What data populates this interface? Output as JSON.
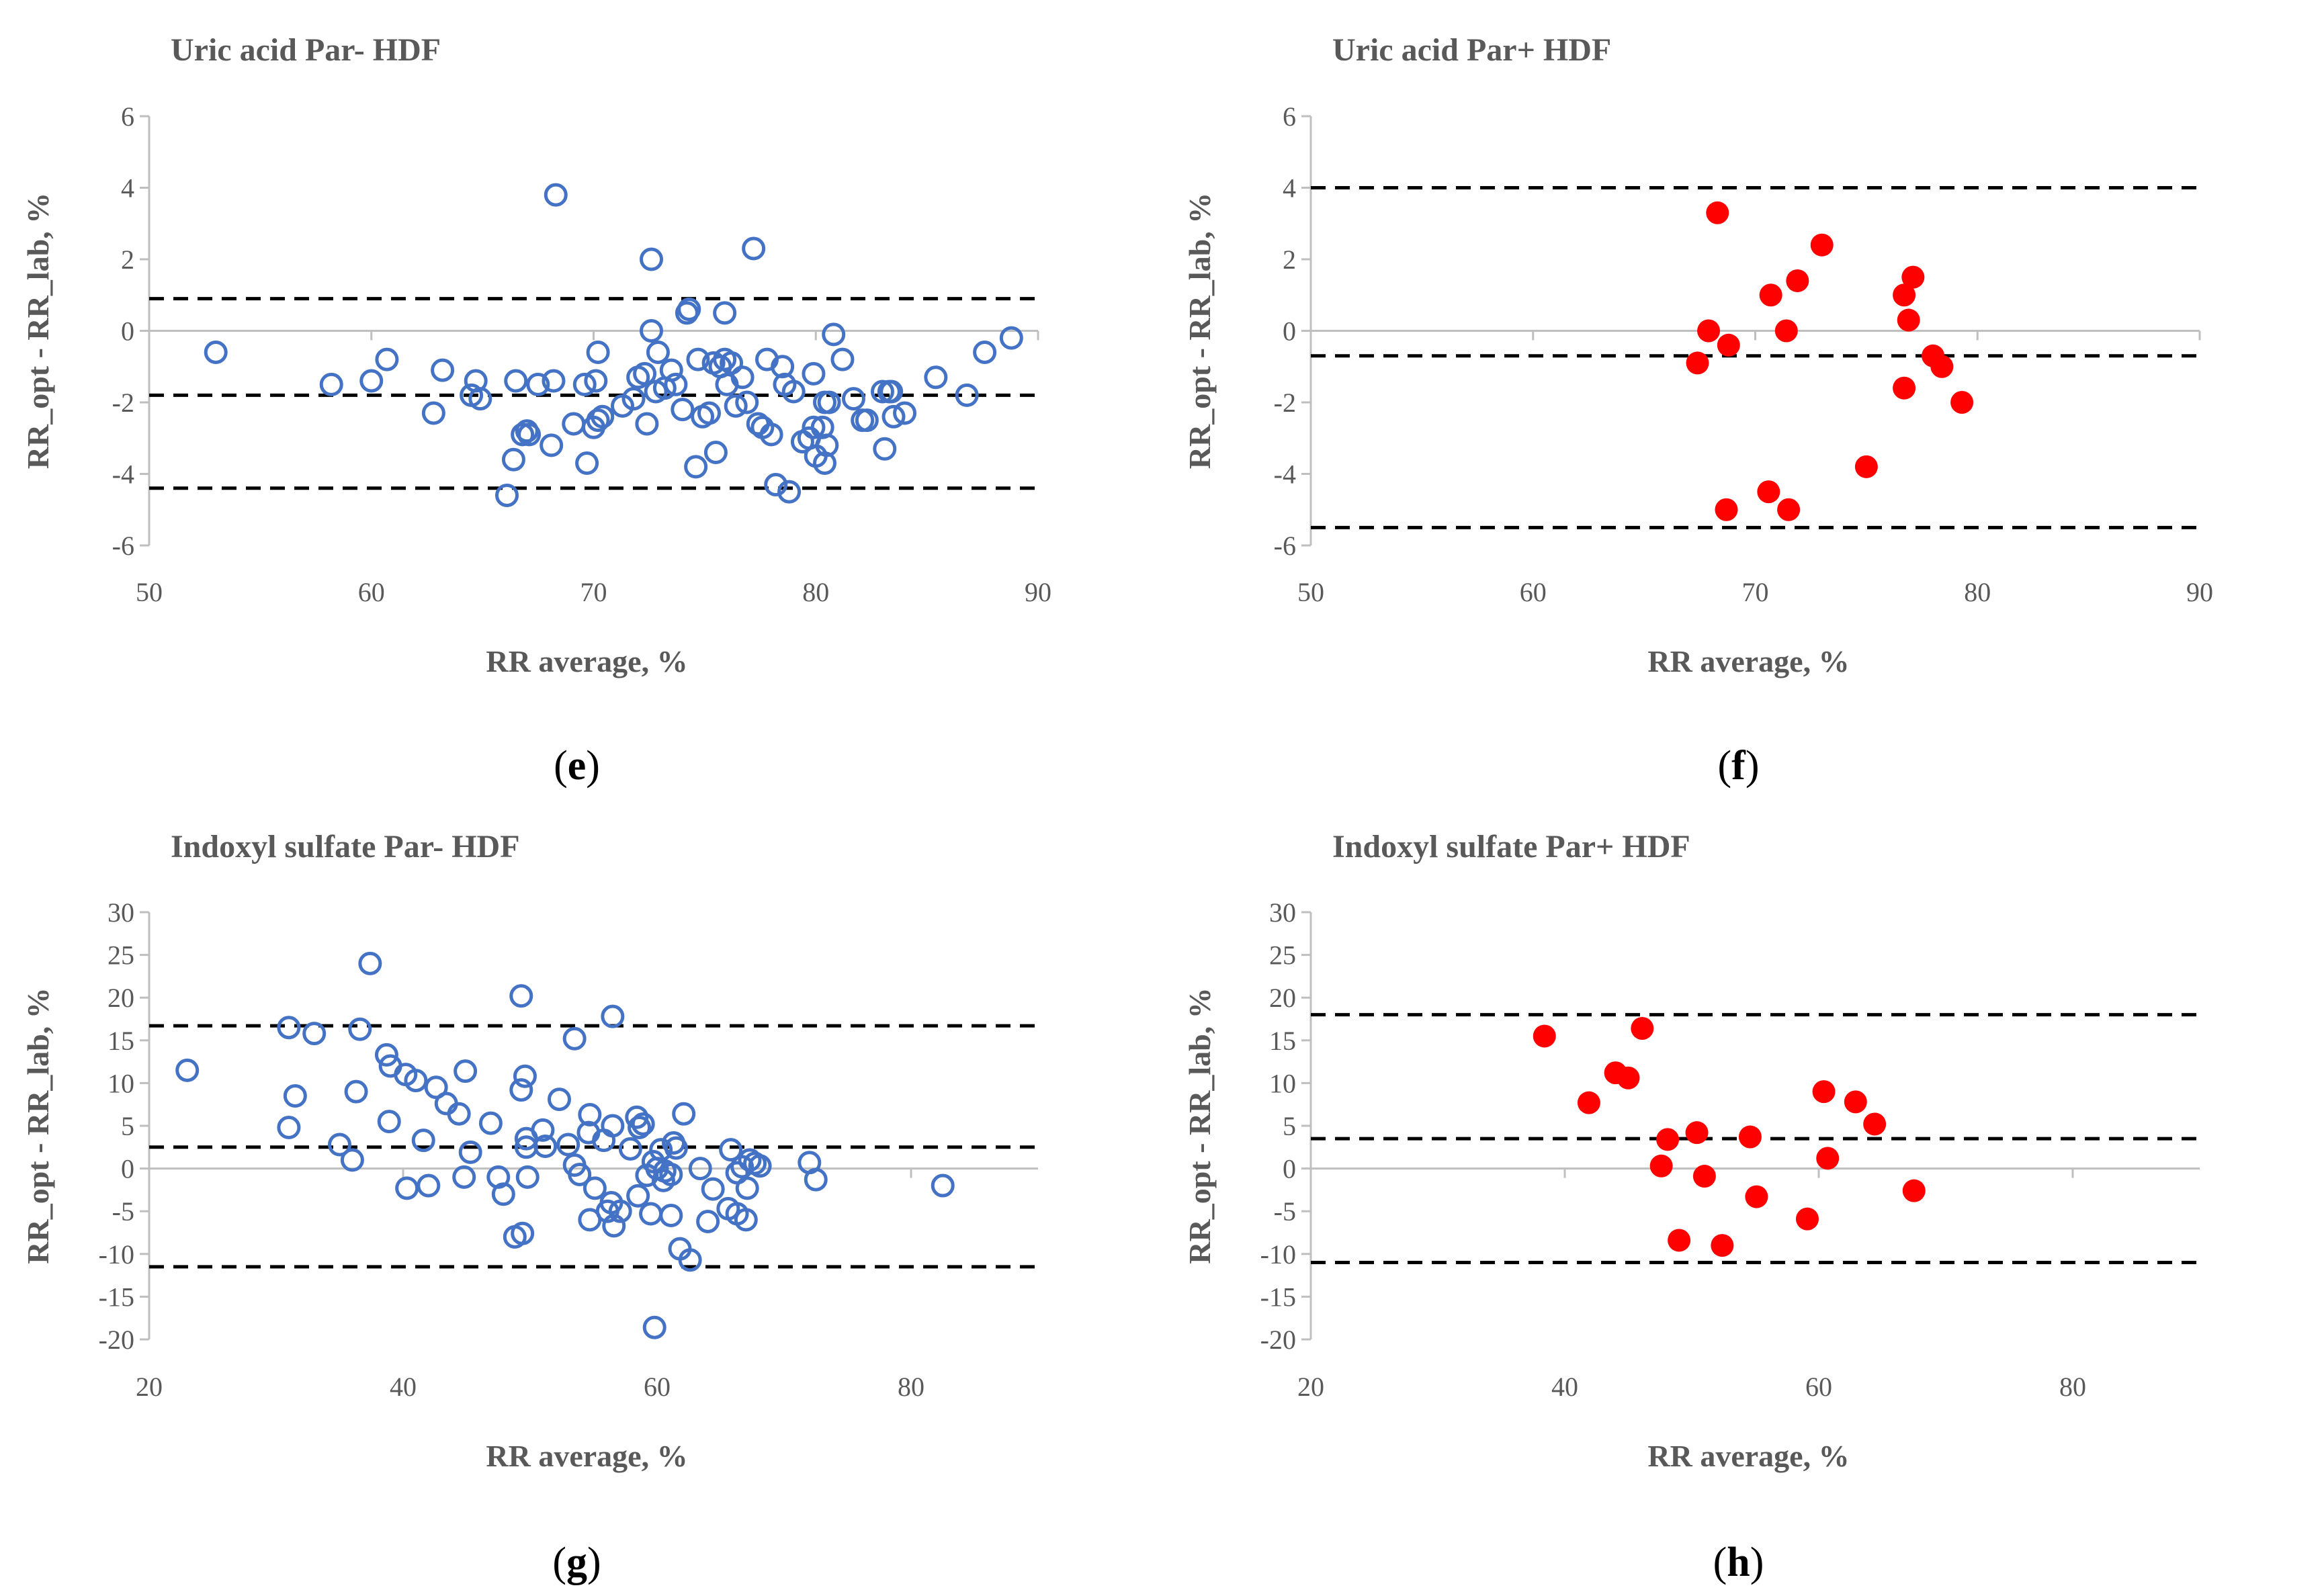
{
  "colors": {
    "blue": "#4472C4",
    "red": "#FF0000",
    "axis": "#BFBFBF",
    "text": "#595959",
    "limit": "#000000"
  },
  "chart_data": [
    {
      "type": "scatter",
      "panel_letter": "e",
      "title": "Uric acid Par- HDF",
      "xlabel": "RR average, %",
      "ylabel": "RR_opt - RR_lab, %",
      "xlim": [
        50,
        90
      ],
      "ylim": [
        -6,
        6
      ],
      "xticks": [
        50,
        60,
        70,
        80,
        90
      ],
      "yticks": [
        -6,
        -4,
        -2,
        0,
        2,
        4,
        6
      ],
      "marker": "open-circle",
      "color": "#4472C4",
      "limits": [
        0.9,
        -1.8,
        -4.4
      ],
      "points": [
        [
          53,
          -0.6
        ],
        [
          58.2,
          -1.5
        ],
        [
          60,
          -1.4
        ],
        [
          60.7,
          -0.8
        ],
        [
          62.8,
          -2.3
        ],
        [
          63.2,
          -1.1
        ],
        [
          64.5,
          -1.8
        ],
        [
          64.7,
          -1.4
        ],
        [
          64.9,
          -1.9
        ],
        [
          66.1,
          -4.6
        ],
        [
          66.4,
          -3.6
        ],
        [
          66.5,
          -1.4
        ],
        [
          66.8,
          -2.9
        ],
        [
          67,
          -2.8
        ],
        [
          67.1,
          -2.9
        ],
        [
          67.5,
          -1.5
        ],
        [
          68.2,
          -1.4
        ],
        [
          68.1,
          -3.2
        ],
        [
          68.3,
          3.8
        ],
        [
          69.1,
          -2.6
        ],
        [
          69.7,
          -3.7
        ],
        [
          69.6,
          -1.5
        ],
        [
          70,
          -2.7
        ],
        [
          70.2,
          -2.5
        ],
        [
          70.1,
          -1.4
        ],
        [
          70.2,
          -0.6
        ],
        [
          70.4,
          -2.4
        ],
        [
          71.3,
          -2.1
        ],
        [
          71.8,
          -1.9
        ],
        [
          72,
          -1.3
        ],
        [
          72.3,
          -1.2
        ],
        [
          72.4,
          -2.6
        ],
        [
          72.6,
          2
        ],
        [
          72.6,
          0
        ],
        [
          72.8,
          -1.7
        ],
        [
          72.9,
          -0.6
        ],
        [
          73.2,
          -1.6
        ],
        [
          73.5,
          -1.1
        ],
        [
          73.7,
          -1.5
        ],
        [
          74,
          -2.2
        ],
        [
          74.2,
          0.5
        ],
        [
          74.3,
          0.6
        ],
        [
          74.6,
          -3.8
        ],
        [
          74.7,
          -0.8
        ],
        [
          74.9,
          -2.4
        ],
        [
          75.2,
          -2.3
        ],
        [
          75.4,
          -0.9
        ],
        [
          75.5,
          -3.4
        ],
        [
          75.7,
          -1
        ],
        [
          75.9,
          -0.8
        ],
        [
          75.9,
          0.5
        ],
        [
          76,
          -1.5
        ],
        [
          76.2,
          -0.9
        ],
        [
          76.4,
          -2.1
        ],
        [
          76.7,
          -1.3
        ],
        [
          76.9,
          -2
        ],
        [
          77.2,
          2.3
        ],
        [
          77.4,
          -2.6
        ],
        [
          77.6,
          -2.7
        ],
        [
          77.8,
          -0.8
        ],
        [
          78,
          -2.9
        ],
        [
          78.2,
          -4.3
        ],
        [
          78.5,
          -1
        ],
        [
          78.6,
          -1.5
        ],
        [
          78.8,
          -4.5
        ],
        [
          79,
          -1.7
        ],
        [
          79.4,
          -3.1
        ],
        [
          79.7,
          -3
        ],
        [
          79.9,
          -1.2
        ],
        [
          79.9,
          -2.7
        ],
        [
          80,
          -3.5
        ],
        [
          80.3,
          -2.7
        ],
        [
          80.4,
          -3.7
        ],
        [
          80.4,
          -2
        ],
        [
          80.5,
          -3.2
        ],
        [
          80.6,
          -2
        ],
        [
          80.8,
          -0.1
        ],
        [
          81.2,
          -0.8
        ],
        [
          81.7,
          -1.9
        ],
        [
          82.1,
          -2.5
        ],
        [
          82.3,
          -2.5
        ],
        [
          83,
          -1.7
        ],
        [
          83.1,
          -3.3
        ],
        [
          83.3,
          -1.7
        ],
        [
          83.5,
          -2.4
        ],
        [
          83.4,
          -1.7
        ],
        [
          84,
          -2.3
        ],
        [
          85.4,
          -1.3
        ],
        [
          86.8,
          -1.8
        ],
        [
          87.6,
          -0.6
        ],
        [
          88.8,
          -0.2
        ]
      ]
    },
    {
      "type": "scatter",
      "panel_letter": "f",
      "title": "Uric acid Par+ HDF",
      "xlabel": "RR average, %",
      "ylabel": "RR_opt - RR_lab, %",
      "xlim": [
        50,
        90
      ],
      "ylim": [
        -6,
        6
      ],
      "xticks": [
        50,
        60,
        70,
        80,
        90
      ],
      "yticks": [
        -6,
        -4,
        -2,
        0,
        2,
        4,
        6
      ],
      "marker": "filled-circle",
      "color": "#FF0000",
      "limits": [
        4,
        -0.7,
        -5.5
      ],
      "points": [
        [
          67.4,
          -0.9
        ],
        [
          67.9,
          0
        ],
        [
          68.3,
          3.3
        ],
        [
          68.7,
          -5
        ],
        [
          68.8,
          -0.4
        ],
        [
          70.6,
          -4.5
        ],
        [
          70.7,
          1
        ],
        [
          71.4,
          0
        ],
        [
          71.5,
          -5
        ],
        [
          71.9,
          1.4
        ],
        [
          73,
          2.4
        ],
        [
          75,
          -3.8
        ],
        [
          76.7,
          -1.6
        ],
        [
          76.7,
          1
        ],
        [
          76.9,
          0.3
        ],
        [
          77.1,
          1.5
        ],
        [
          78,
          -0.7
        ],
        [
          78.4,
          -1
        ],
        [
          79.3,
          -2
        ]
      ]
    },
    {
      "type": "scatter",
      "panel_letter": "g",
      "title": "Indoxyl sulfate Par- HDF",
      "xlabel": "RR average, %",
      "ylabel": "RR_opt - RR_lab, %",
      "xlim": [
        20,
        90
      ],
      "ylim": [
        -20,
        30
      ],
      "xticks": [
        20,
        40,
        60,
        80
      ],
      "yticks": [
        -20,
        -15,
        -10,
        -5,
        0,
        5,
        10,
        15,
        20,
        25,
        30
      ],
      "marker": "open-circle",
      "color": "#4472C4",
      "limits": [
        16.7,
        2.5,
        -11.5
      ],
      "points": [
        [
          23,
          11.5
        ],
        [
          31,
          16.5
        ],
        [
          31,
          4.8
        ],
        [
          31.5,
          8.5
        ],
        [
          33,
          15.8
        ],
        [
          35,
          2.8
        ],
        [
          36,
          1
        ],
        [
          36.3,
          9
        ],
        [
          36.6,
          16.3
        ],
        [
          37.4,
          24
        ],
        [
          38.7,
          13.3
        ],
        [
          38.9,
          5.5
        ],
        [
          39,
          12
        ],
        [
          40.2,
          11
        ],
        [
          40.3,
          -2.3
        ],
        [
          41,
          10.3
        ],
        [
          41.6,
          3.3
        ],
        [
          42,
          -2
        ],
        [
          42.6,
          9.5
        ],
        [
          43.4,
          7.6
        ],
        [
          44.4,
          6.4
        ],
        [
          44.8,
          -1
        ],
        [
          44.9,
          11.4
        ],
        [
          45.3,
          1.9
        ],
        [
          46.9,
          5.3
        ],
        [
          47.5,
          -1
        ],
        [
          47.9,
          -3
        ],
        [
          48.8,
          -8
        ],
        [
          49.3,
          20.2
        ],
        [
          49.3,
          9.2
        ],
        [
          49.4,
          -7.6
        ],
        [
          49.6,
          10.8
        ],
        [
          49.7,
          3.5
        ],
        [
          49.7,
          2.5
        ],
        [
          49.8,
          -1
        ],
        [
          51,
          4.5
        ],
        [
          51.2,
          2.6
        ],
        [
          52.3,
          8.1
        ],
        [
          53,
          2.8
        ],
        [
          53.5,
          15.2
        ],
        [
          53.5,
          0.4
        ],
        [
          53.9,
          -0.7
        ],
        [
          54.6,
          4.2
        ],
        [
          54.7,
          -6
        ],
        [
          54.7,
          6.3
        ],
        [
          55.1,
          -2.3
        ],
        [
          55.8,
          3.3
        ],
        [
          56.1,
          -5
        ],
        [
          56.4,
          -4
        ],
        [
          56.5,
          5
        ],
        [
          56.5,
          17.8
        ],
        [
          56.6,
          -6.7
        ],
        [
          57.1,
          -5
        ],
        [
          57.9,
          2.3
        ],
        [
          58.4,
          6
        ],
        [
          58.5,
          -3.2
        ],
        [
          58.6,
          4.8
        ],
        [
          58.9,
          5.2
        ],
        [
          59.2,
          -0.8
        ],
        [
          59.5,
          -5.3
        ],
        [
          59.7,
          0.8
        ],
        [
          59.8,
          -18.6
        ],
        [
          60,
          0
        ],
        [
          60.3,
          2.2
        ],
        [
          60.5,
          -1.4
        ],
        [
          60.6,
          -0.3
        ],
        [
          61.1,
          -0.7
        ],
        [
          61.1,
          -5.5
        ],
        [
          61.3,
          3
        ],
        [
          61.5,
          2.4
        ],
        [
          61.8,
          -9.4
        ],
        [
          62.1,
          6.4
        ],
        [
          62.6,
          -10.7
        ],
        [
          63.4,
          0
        ],
        [
          64,
          -6.2
        ],
        [
          64.4,
          -2.4
        ],
        [
          65.6,
          -4.7
        ],
        [
          65.8,
          2.2
        ],
        [
          66.3,
          -0.5
        ],
        [
          66.3,
          -5.3
        ],
        [
          66.7,
          0.2
        ],
        [
          67,
          -6
        ],
        [
          67.1,
          -2.3
        ],
        [
          67.3,
          1
        ],
        [
          67.7,
          0.6
        ],
        [
          68.1,
          0.3
        ],
        [
          72,
          0.7
        ],
        [
          72.5,
          -1.3
        ],
        [
          82.5,
          -2
        ]
      ]
    },
    {
      "type": "scatter",
      "panel_letter": "h",
      "title": "Indoxyl sulfate Par+ HDF",
      "xlabel": "RR average, %",
      "ylabel": "RR_opt - RR_lab, %",
      "xlim": [
        20,
        90
      ],
      "ylim": [
        -20,
        30
      ],
      "xticks": [
        20,
        40,
        60,
        80
      ],
      "yticks": [
        -20,
        -15,
        -10,
        -5,
        0,
        5,
        10,
        15,
        20,
        25,
        30
      ],
      "marker": "filled-circle",
      "color": "#FF0000",
      "limits": [
        18,
        3.5,
        -11
      ],
      "points": [
        [
          38.4,
          15.5
        ],
        [
          41.9,
          7.7
        ],
        [
          44,
          11.2
        ],
        [
          45,
          10.6
        ],
        [
          46.1,
          16.4
        ],
        [
          47.6,
          0.3
        ],
        [
          48.1,
          3.4
        ],
        [
          49,
          -8.4
        ],
        [
          50.4,
          4.2
        ],
        [
          51,
          -0.9
        ],
        [
          52.4,
          -9
        ],
        [
          54.6,
          3.7
        ],
        [
          55.1,
          -3.3
        ],
        [
          59.1,
          -5.9
        ],
        [
          60.4,
          9
        ],
        [
          60.7,
          1.2
        ],
        [
          62.9,
          7.8
        ],
        [
          64.4,
          5.2
        ],
        [
          67.5,
          -2.6
        ]
      ]
    }
  ]
}
